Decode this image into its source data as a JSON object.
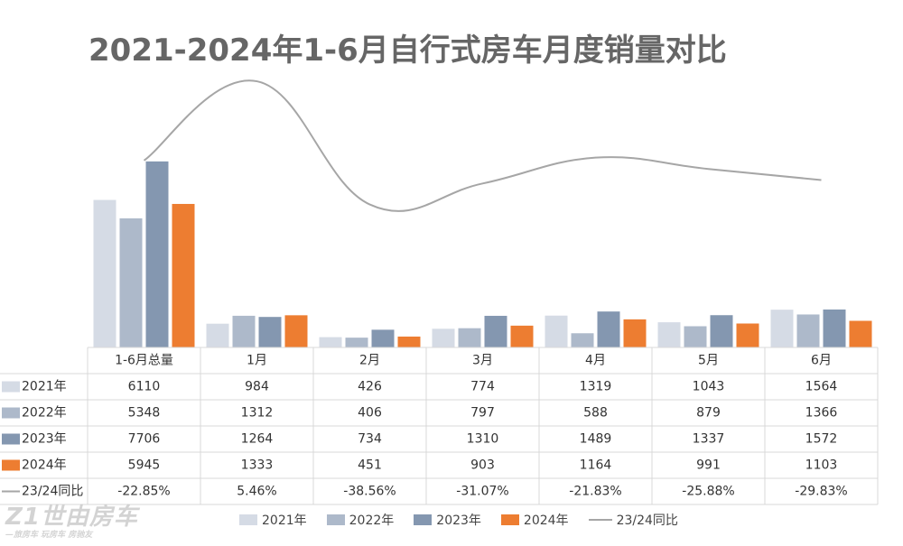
{
  "chart_data": {
    "type": "bar",
    "title": "2021-2024年1-6月自行式房车月度销量对比",
    "categories": [
      "1-6月总量",
      "1月",
      "2月",
      "3月",
      "4月",
      "5月",
      "6月"
    ],
    "series": [
      {
        "name": "2021年",
        "color": "#d5dbe5",
        "values": [
          6110,
          984,
          426,
          774,
          1319,
          1043,
          1564
        ]
      },
      {
        "name": "2022年",
        "color": "#adb9ca",
        "values": [
          5348,
          1312,
          406,
          797,
          588,
          879,
          1366
        ]
      },
      {
        "name": "2023年",
        "color": "#8497b0",
        "values": [
          7706,
          1264,
          734,
          1310,
          1489,
          1337,
          1572
        ]
      },
      {
        "name": "2024年",
        "color": "#ed7d31",
        "values": [
          5945,
          1333,
          451,
          903,
          1164,
          991,
          1103
        ]
      }
    ],
    "line_series": {
      "name": "23/24同比",
      "color": "#a6a6a6",
      "values": [
        -22.85,
        5.46,
        -38.56,
        -31.07,
        -21.83,
        -25.88,
        -29.83
      ],
      "labels": [
        "-22.85%",
        "5.46%",
        "-38.56%",
        "-31.07%",
        "-21.83%",
        "-25.88%",
        "-29.83%"
      ]
    },
    "data_table": true,
    "legend_position": "bottom"
  },
  "watermark": {
    "big": "Z1世由房车",
    "small": "—旅房车 玩房车 房驰友"
  }
}
